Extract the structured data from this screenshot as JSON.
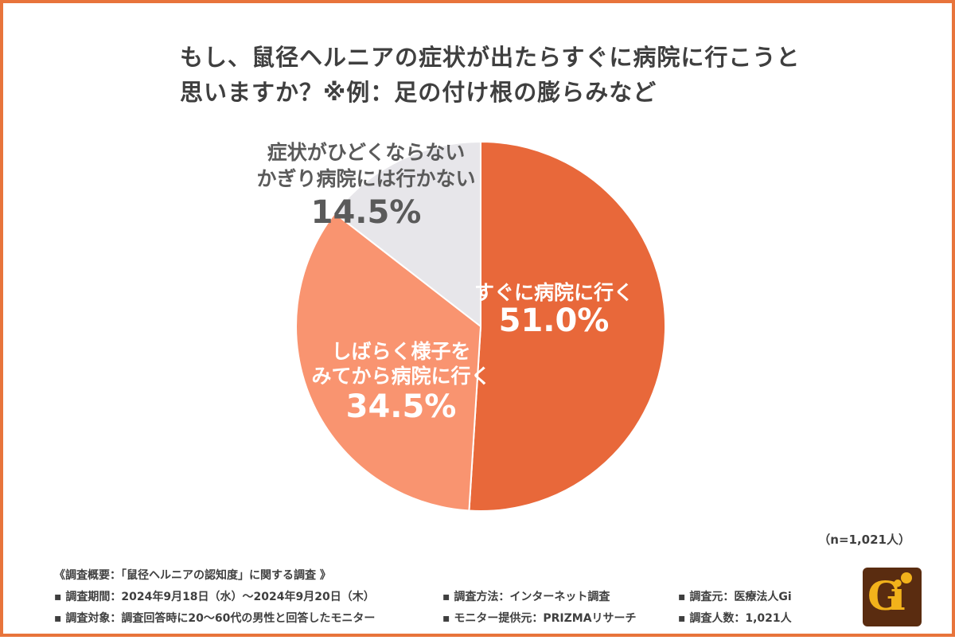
{
  "title": {
    "line1": "もし、鼠径ヘルニアの症状が出たらすぐに病院に行こうと",
    "line2": "思いますか？※例：足の付け根の膨らみなど"
  },
  "chart_data": {
    "type": "pie",
    "title": "もし、鼠径ヘルニアの症状が出たらすぐに病院に行こうと思いますか？※例：足の付け根の膨らみなど",
    "slices": [
      {
        "label": "すぐに病院に行く",
        "value": 51.0,
        "display": "51.0%",
        "color": "#e8683a"
      },
      {
        "label": "しばらく様子をみてから病院に行く",
        "value": 34.5,
        "display": "34.5%",
        "color": "#f99470"
      },
      {
        "label": "症状がひどくならないかぎり病院には行かない",
        "value": 14.5,
        "display": "14.5%",
        "color": "#e7e6ea"
      }
    ],
    "label_lines": [
      [
        "すぐに病院に行く"
      ],
      [
        "しばらく様子を",
        "みてから病院に行く"
      ],
      [
        "症状がひどくならない",
        "かぎり病院には行かない"
      ]
    ],
    "label_colors": [
      "#ffffff",
      "#ffffff",
      "#5a5a5a"
    ],
    "start": "12 o'clock",
    "direction": "clockwise",
    "n_label": "（n=1,021人）"
  },
  "notes": {
    "heading": "《調査概要：「鼠径ヘルニアの認知度」に関する調査 》",
    "period": "▪ 調査期間：2024年9月18日（水）〜2024年9月20日（木）",
    "method": "▪ 調査方法：インターネット調査",
    "source": "▪ 調査元：医療法人Gi",
    "target": "▪ 調査対象：調査回答時に20〜60代の男性と回答したモニター",
    "provider": "▪ モニター提供元：PRIZMAリサーチ",
    "count": "▪ 調査人数：1,021人"
  },
  "logo": {
    "text": "Gi",
    "bg_color": "#5a2c10",
    "fg_color": "#f2b21b"
  }
}
